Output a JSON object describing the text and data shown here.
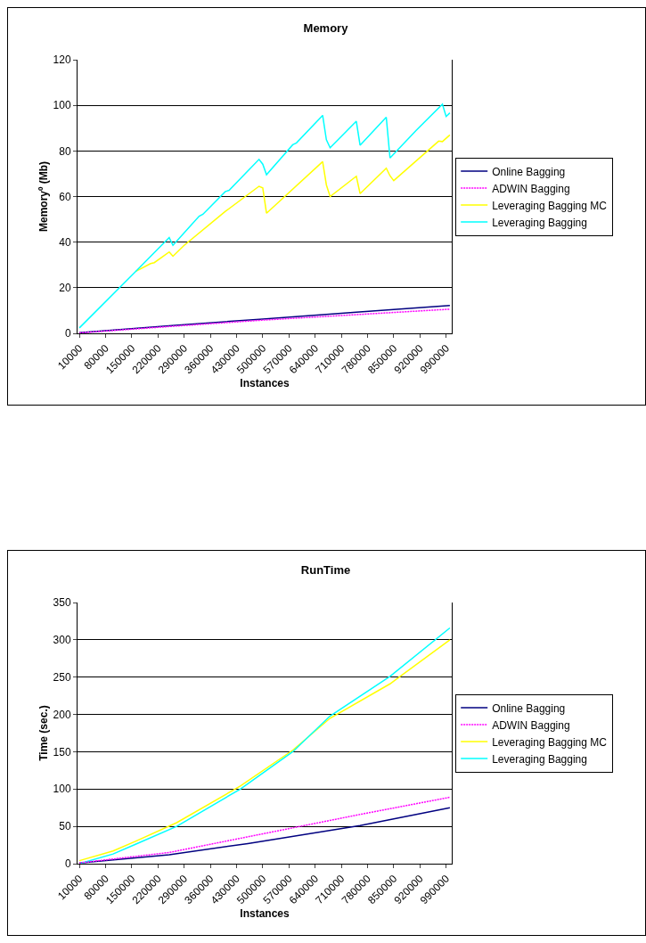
{
  "chart_data": [
    {
      "type": "line",
      "title": "Memory",
      "xlabel": "Instances",
      "ylabel": "Memoryº (Mb)",
      "xlim": [
        5000,
        1005000
      ],
      "xticks": [
        10000,
        80000,
        150000,
        220000,
        290000,
        360000,
        430000,
        500000,
        570000,
        640000,
        710000,
        780000,
        850000,
        920000,
        990000
      ],
      "ylim": [
        0,
        120
      ],
      "yticks": [
        0,
        20,
        40,
        60,
        80,
        100,
        120
      ],
      "grid": "y",
      "legend": "right",
      "marker": "none",
      "series": [
        {
          "name": "Online Bagging",
          "color": "#000080",
          "line_style": "solid",
          "x": [
            10000,
            250000,
            500000,
            750000,
            1000000
          ],
          "values": [
            0.3,
            3.3,
            6.3,
            9.3,
            12.2
          ]
        },
        {
          "name": "ADWIN Bagging",
          "color": "#ff00ff",
          "line_style": "dotted",
          "x": [
            10000,
            250000,
            500000,
            750000,
            1000000
          ],
          "values": [
            0.2,
            3.0,
            5.8,
            8.2,
            10.6
          ]
        },
        {
          "name": "Leveraging Bagging MC",
          "color": "#ffff00",
          "line_style": "solid",
          "x": [
            160000,
            200000,
            210000,
            250000,
            260000,
            290000,
            400000,
            490000,
            500000,
            510000,
            660000,
            670000,
            680000,
            750000,
            760000,
            830000,
            840000,
            850000,
            970000,
            980000,
            1000000
          ],
          "values": [
            27.1,
            30.6,
            31,
            35.7,
            33.8,
            38.6,
            53.5,
            64.5,
            63.8,
            52.7,
            75.3,
            65.1,
            60,
            68.9,
            61.3,
            72.4,
            69.1,
            67,
            84.3,
            84.1,
            87
          ]
        },
        {
          "name": "Leveraging Bagging",
          "color": "#00ffff",
          "line_style": "solid",
          "x": [
            10000,
            160000,
            250000,
            260000,
            330000,
            340000,
            400000,
            410000,
            490000,
            500000,
            510000,
            580000,
            590000,
            660000,
            670000,
            680000,
            750000,
            760000,
            830000,
            840000,
            910000,
            980000,
            990000,
            1000000
          ],
          "values": [
            2.4,
            27.1,
            42,
            38.6,
            51.4,
            52.2,
            62.2,
            62.7,
            76.3,
            74.2,
            69.6,
            82.7,
            83.5,
            95.6,
            84.9,
            81.4,
            93,
            82.5,
            94.8,
            76.9,
            89,
            100.5,
            95.1,
            96.7
          ]
        }
      ]
    },
    {
      "type": "line",
      "title": "RunTime",
      "xlabel": "Instances",
      "ylabel": "Time (sec.)",
      "xlim": [
        5000,
        1005000
      ],
      "xticks": [
        10000,
        80000,
        150000,
        220000,
        290000,
        360000,
        430000,
        500000,
        570000,
        640000,
        710000,
        780000,
        850000,
        920000,
        990000
      ],
      "ylim": [
        0,
        350
      ],
      "yticks": [
        0,
        50,
        100,
        150,
        200,
        250,
        300,
        350
      ],
      "grid": "y",
      "legend": "right",
      "marker": "none",
      "series": [
        {
          "name": "Online Bagging",
          "color": "#000080",
          "line_style": "solid",
          "x": [
            10000,
            250000,
            460000,
            760000,
            1000000
          ],
          "values": [
            1,
            12,
            27,
            51,
            75
          ]
        },
        {
          "name": "ADWIN Bagging",
          "color": "#ff00ff",
          "line_style": "dotted",
          "x": [
            10000,
            250000,
            380000,
            760000,
            1000000
          ],
          "values": [
            1,
            15,
            28,
            66,
            89
          ]
        },
        {
          "name": "Leveraging Bagging MC",
          "color": "#ffff00",
          "line_style": "solid",
          "x": [
            10000,
            100000,
            160000,
            270000,
            440000,
            580000,
            680000,
            840000,
            1000000
          ],
          "values": [
            4,
            17,
            30,
            55,
            104,
            152,
            195,
            241,
            300
          ]
        },
        {
          "name": "Leveraging Bagging",
          "color": "#00ffff",
          "line_style": "solid",
          "x": [
            10000,
            100000,
            160000,
            270000,
            440000,
            580000,
            680000,
            840000,
            1000000
          ],
          "values": [
            0,
            13,
            26,
            50,
            100,
            150,
            198,
            251,
            316
          ]
        }
      ]
    }
  ]
}
